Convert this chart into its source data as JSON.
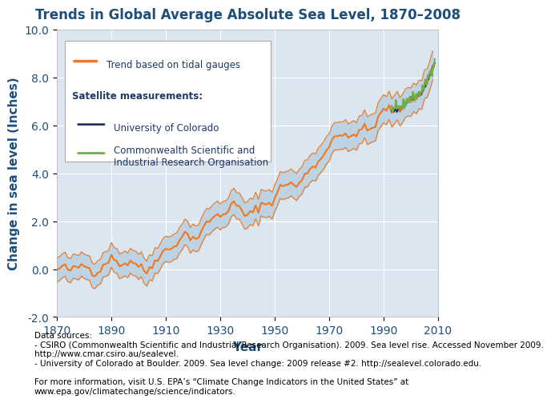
{
  "title": "Trends in Global Average Absolute Sea Level, 1870–2008",
  "xlabel": "Year",
  "ylabel": "Change in sea level (Inches)",
  "xlim": [
    1870,
    2010
  ],
  "ylim": [
    -2.0,
    10.0
  ],
  "xticks": [
    1870,
    1890,
    1910,
    1930,
    1950,
    1970,
    1990,
    2010
  ],
  "yticks": [
    -2.0,
    0.0,
    2.0,
    4.0,
    6.0,
    8.0,
    10.0
  ],
  "bg_color": "#dce6f0",
  "fig_bg_color": "#ffffff",
  "title_color": "#1f4e79",
  "axis_label_color": "#1f4e79",
  "tick_label_color": "#1f4e79",
  "orange_color": "#f07820",
  "dark_blue_color": "#1f3864",
  "green_color": "#70ad47",
  "band_color": "#b8cfe0",
  "legend_satellite_label": "Satellite measurements:",
  "legend_tidal_label": "Trend based on tidal gauges",
  "legend_colorado_label": "University of Colorado",
  "legend_csiro_label": "Commonwealth Scientific and\nIndustrial Research Organisation",
  "footer_text": "Data sources:\n- CSIRO (Commonwealth Scientific and Industrial Research Organisation). 2009. Sea level rise. Accessed November 2009.\nhttp://www.cmar.csiro.au/sealevel.\n- University of Colorado at Boulder. 2009. Sea level change: 2009 release #2. http://sealevel.colorado.edu.\n\nFor more information, visit U.S. EPA’s “Climate Change Indicators in the United States” at\nwww.epa.gov/climatechange/science/indicators.",
  "title_fontsize": 12,
  "axis_label_fontsize": 11,
  "tick_fontsize": 10,
  "footer_fontsize": 7.5
}
